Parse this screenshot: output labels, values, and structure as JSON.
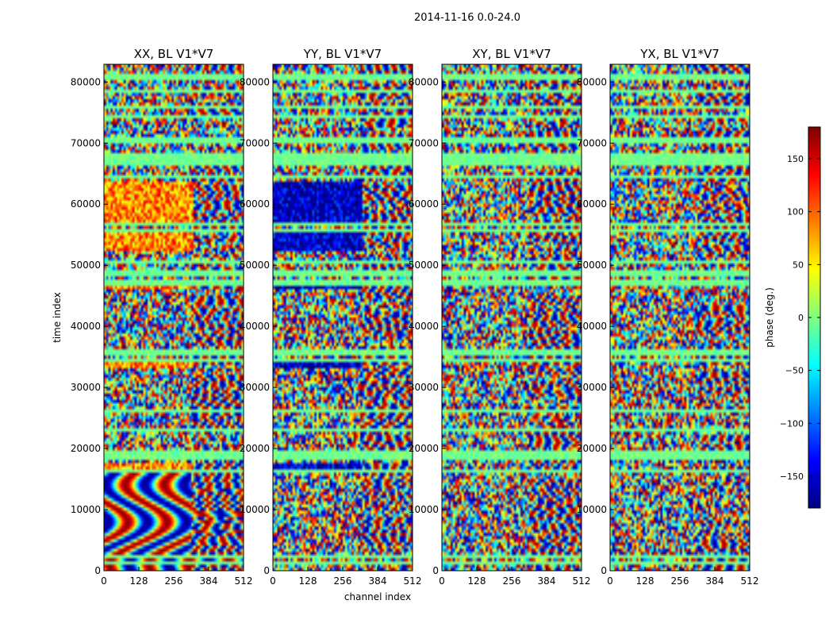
{
  "figure": {
    "suptitle": "2014-11-16 0.0-24.0"
  },
  "chart_data": {
    "type": "heatmap",
    "colormap": "jet",
    "xlabel": "channel index",
    "ylabel": "time index",
    "xlim": [
      0,
      512
    ],
    "ylim": [
      0,
      82900
    ],
    "xticks": [
      0,
      128,
      256,
      384,
      512
    ],
    "yticks": [
      0,
      10000,
      20000,
      30000,
      40000,
      50000,
      60000,
      70000,
      80000
    ],
    "colorbar": {
      "label": "phase (deg.)",
      "range": [
        -180,
        180
      ],
      "ticks": [
        150,
        100,
        50,
        0,
        -50,
        -100,
        -150
      ],
      "tick_labels": [
        "150",
        "100",
        "50",
        "0",
        "−50",
        "−100",
        "−150"
      ],
      "colors": [
        "#00007f",
        "#0000ff",
        "#007fff",
        "#00ffff",
        "#7fff7f",
        "#ffff00",
        "#ff7f00",
        "#ff0000",
        "#7f0000"
      ]
    },
    "panels": [
      {
        "title": "XX, BL V1*V7",
        "bias_value": 85,
        "bias_color": "#ffb000",
        "bias_bands": [
          [
            46000,
            47800
          ],
          [
            52500,
            55500
          ],
          [
            57000,
            63500
          ],
          [
            33300,
            34200
          ],
          [
            16500,
            17800
          ]
        ]
      },
      {
        "title": "YY, BL V1*V7",
        "bias_value": -160,
        "bias_color": "#0018e6",
        "bias_bands": [
          [
            46000,
            47800
          ],
          [
            52500,
            55500
          ],
          [
            57000,
            63500
          ],
          [
            33300,
            34200
          ],
          [
            16500,
            17800
          ]
        ]
      },
      {
        "title": "XY, BL V1*V7",
        "bias_value": 0,
        "bias_color": "",
        "bias_bands": []
      },
      {
        "title": "YX, BL V1*V7",
        "bias_value": 0,
        "bias_color": "",
        "bias_bands": []
      }
    ],
    "flag_rows": [
      1500,
      2200,
      16300,
      18200,
      19200,
      23000,
      26000,
      34500,
      35600,
      36200,
      47200,
      48700,
      50700,
      55900,
      56600,
      64500,
      66800,
      67700,
      68200,
      70500,
      74500,
      76000,
      78300,
      80800
    ]
  }
}
